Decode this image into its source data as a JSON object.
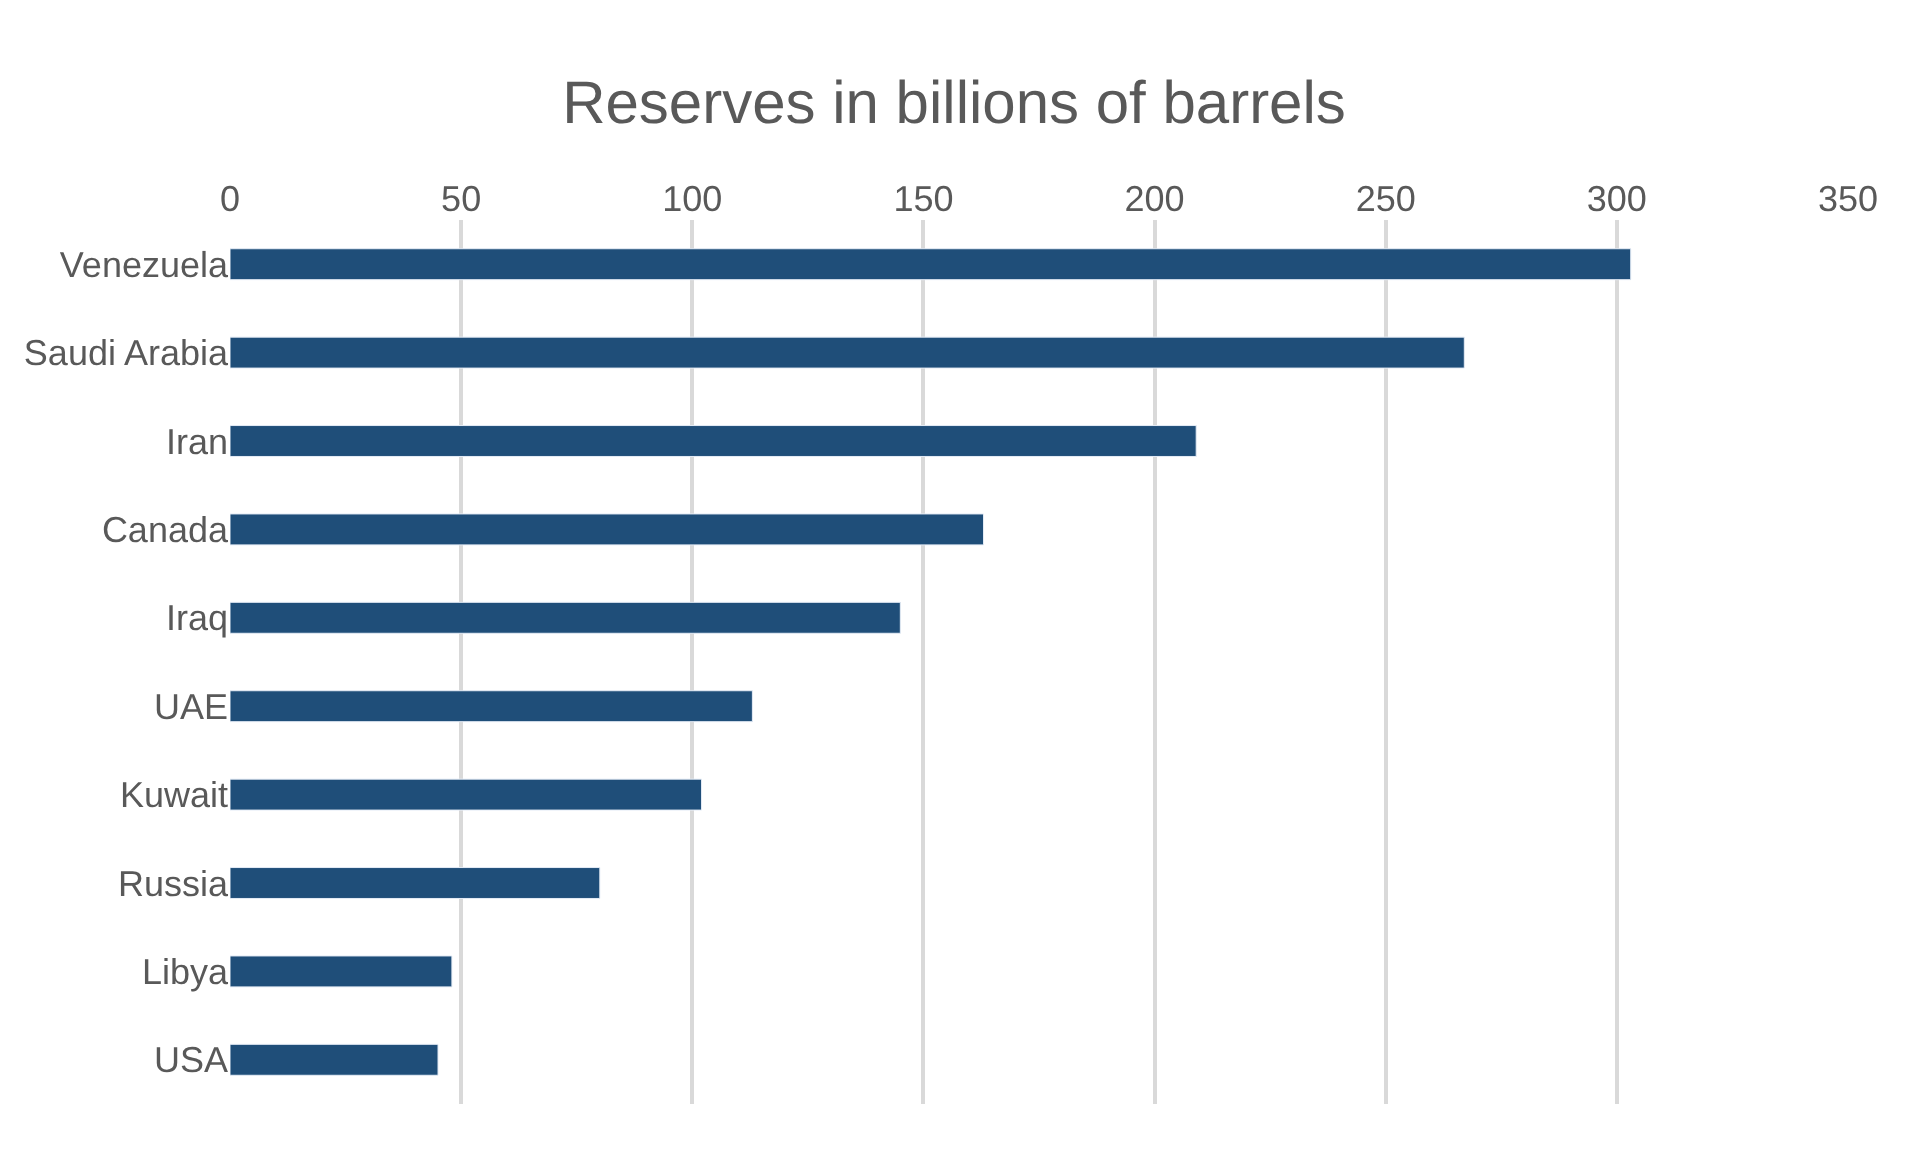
{
  "chart_data": {
    "type": "bar",
    "orientation": "horizontal",
    "title": "Reserves in billions of barrels",
    "categories": [
      "Venezuela",
      "Saudi Arabia",
      "Iran",
      "Canada",
      "Iraq",
      "UAE",
      "Kuwait",
      "Russia",
      "Libya",
      "USA"
    ],
    "values": [
      303,
      267,
      209,
      163,
      145,
      113,
      102,
      80,
      48,
      45
    ],
    "color": "#1f4e79",
    "xlim": [
      0,
      350
    ],
    "xticks": [
      0,
      50,
      100,
      150,
      200,
      250,
      300,
      350
    ],
    "grid": "x"
  }
}
